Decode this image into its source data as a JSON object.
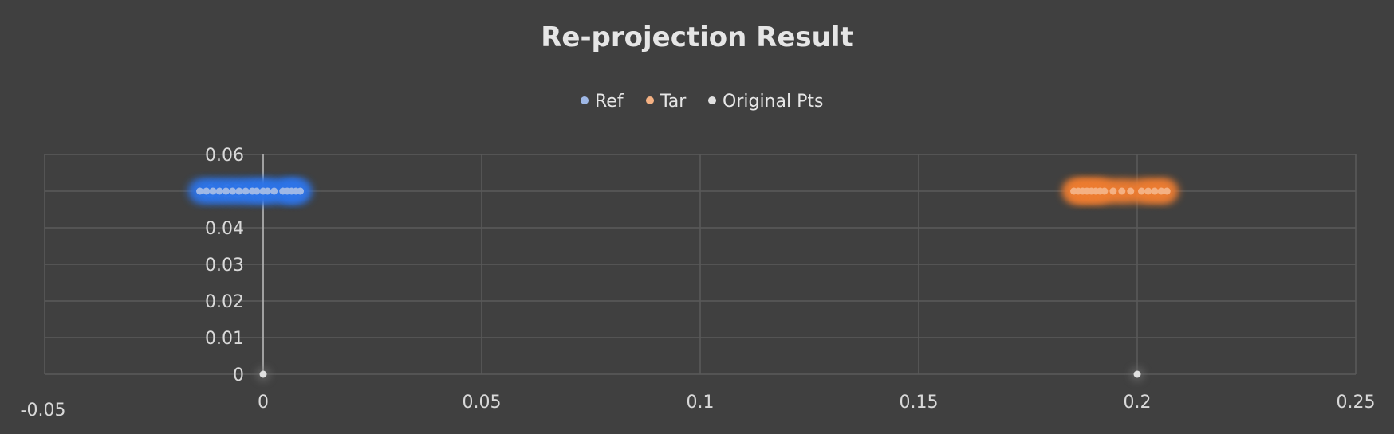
{
  "chart_data": {
    "type": "scatter",
    "title": "Re-projection Result",
    "legend_position": "top",
    "grid": true,
    "xlim": [
      -0.05,
      0.25
    ],
    "ylim": [
      0,
      0.06
    ],
    "x_ticks": [
      "-0.05",
      "0",
      "0.05",
      "0.1",
      "0.15",
      "0.2",
      "0.25"
    ],
    "y_ticks": [
      "0",
      "0.01",
      "0.02",
      "0.03",
      "0.04",
      "0.05",
      "0.06"
    ],
    "series": [
      {
        "name": "Ref",
        "color": "#2e74e8",
        "marker": "#9fb8e6",
        "points": [
          [
            -0.0145,
            0.05
          ],
          [
            -0.013,
            0.05
          ],
          [
            -0.0115,
            0.05
          ],
          [
            -0.01,
            0.05
          ],
          [
            -0.0085,
            0.05
          ],
          [
            -0.007,
            0.05
          ],
          [
            -0.0055,
            0.05
          ],
          [
            -0.004,
            0.05
          ],
          [
            -0.0025,
            0.05
          ],
          [
            -0.0015,
            0.05
          ],
          [
            0.0,
            0.05
          ],
          [
            0.001,
            0.05
          ],
          [
            0.0025,
            0.05
          ],
          [
            0.0045,
            0.05
          ],
          [
            0.0055,
            0.05
          ],
          [
            0.0065,
            0.05
          ],
          [
            0.0075,
            0.05
          ],
          [
            0.0085,
            0.05
          ]
        ]
      },
      {
        "name": "Tar",
        "color": "#ed7d31",
        "marker": "#f4b183",
        "points": [
          [
            0.1855,
            0.05
          ],
          [
            0.1865,
            0.05
          ],
          [
            0.1875,
            0.05
          ],
          [
            0.1885,
            0.05
          ],
          [
            0.1895,
            0.05
          ],
          [
            0.1905,
            0.05
          ],
          [
            0.1915,
            0.05
          ],
          [
            0.1925,
            0.05
          ],
          [
            0.1945,
            0.05
          ],
          [
            0.1965,
            0.05
          ],
          [
            0.1985,
            0.05
          ],
          [
            0.201,
            0.05
          ],
          [
            0.2025,
            0.05
          ],
          [
            0.204,
            0.05
          ],
          [
            0.2055,
            0.05
          ],
          [
            0.2068,
            0.05
          ]
        ]
      },
      {
        "name": "Original Pts",
        "color": "#d9d9d9",
        "marker": "#e0e0e0",
        "points": [
          [
            0,
            0
          ],
          [
            0.2,
            0
          ]
        ]
      }
    ]
  }
}
